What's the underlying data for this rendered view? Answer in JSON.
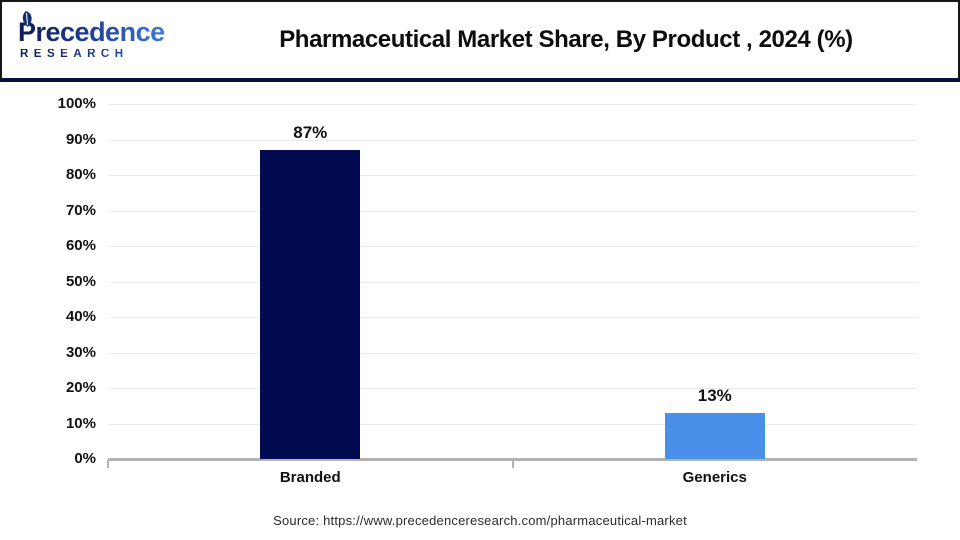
{
  "header": {
    "logo": {
      "brand": "Precedence",
      "sub": "RESEARCH"
    },
    "title": "Pharmaceutical Market Share, By Product , 2024 (%)"
  },
  "chart_data": {
    "type": "bar",
    "title": "Pharmaceutical Market Share, By Product , 2024 (%)",
    "categories": [
      "Branded",
      "Generics"
    ],
    "values": [
      87,
      13
    ],
    "value_labels": [
      "87%",
      "13%"
    ],
    "bar_colors": [
      "#020a50",
      "#4a90e8"
    ],
    "xlabel": "",
    "ylabel": "",
    "ylim": [
      0,
      100
    ],
    "ytick_step": 10,
    "ytick_labels": [
      "0%",
      "10%",
      "20%",
      "30%",
      "40%",
      "50%",
      "60%",
      "70%",
      "80%",
      "90%",
      "100%"
    ],
    "grid": true,
    "legend": false
  },
  "footer": {
    "source": "Source: https://www.precedenceresearch.com/pharmaceutical-market"
  },
  "colors": {
    "bar_branded": "#020a50",
    "bar_generics": "#4a90e8",
    "header_rule": "#081040",
    "axis_line": "#b3b3b3",
    "gridline": "#ebebeb"
  }
}
